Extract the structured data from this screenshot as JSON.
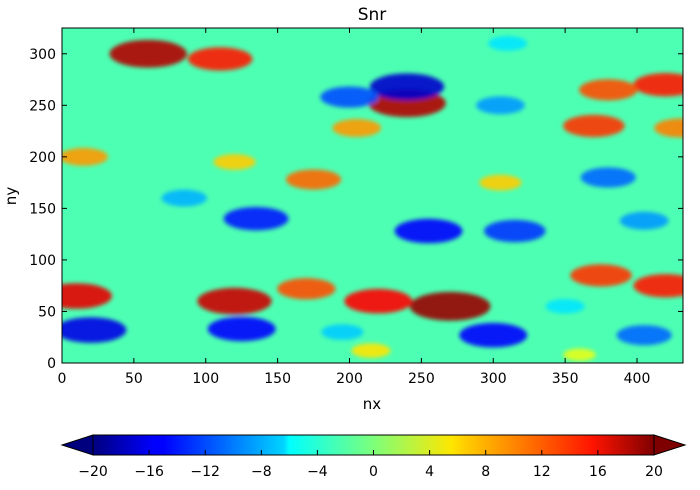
{
  "chart_data": {
    "type": "heatmap",
    "title": "Snr",
    "xlabel": "nx",
    "ylabel": "ny",
    "xlim": [
      0,
      432
    ],
    "ylim": [
      0,
      325
    ],
    "x_ticks": [
      0,
      50,
      100,
      150,
      200,
      250,
      300,
      350,
      400
    ],
    "y_ticks": [
      0,
      50,
      100,
      150,
      200,
      250,
      300
    ],
    "colorbar": {
      "orientation": "horizontal",
      "extend": "both",
      "colormap": "jet",
      "range": [
        -20,
        20
      ],
      "ticks": [
        -20,
        -16,
        -12,
        -8,
        -4,
        0,
        4,
        8,
        12,
        16,
        20
      ],
      "tick_labels": [
        "−20",
        "−16",
        "−12",
        "−8",
        "−4",
        "0",
        "4",
        "8",
        "12",
        "16",
        "20"
      ]
    },
    "features": [
      {
        "x": 270,
        "y": 55,
        "value": 19
      },
      {
        "x": 220,
        "y": 60,
        "value": 15
      },
      {
        "x": 120,
        "y": 60,
        "value": 17
      },
      {
        "x": 170,
        "y": 72,
        "value": 12
      },
      {
        "x": 10,
        "y": 65,
        "value": 16
      },
      {
        "x": 420,
        "y": 75,
        "value": 14
      },
      {
        "x": 375,
        "y": 85,
        "value": 13
      },
      {
        "x": 60,
        "y": 300,
        "value": 18
      },
      {
        "x": 110,
        "y": 295,
        "value": 14
      },
      {
        "x": 240,
        "y": 252,
        "value": 18
      },
      {
        "x": 420,
        "y": 270,
        "value": 14
      },
      {
        "x": 380,
        "y": 265,
        "value": 12
      },
      {
        "x": 430,
        "y": 228,
        "value": 10
      },
      {
        "x": 370,
        "y": 230,
        "value": 13
      },
      {
        "x": 205,
        "y": 228,
        "value": 9
      },
      {
        "x": 15,
        "y": 200,
        "value": 9
      },
      {
        "x": 120,
        "y": 195,
        "value": 7
      },
      {
        "x": 175,
        "y": 178,
        "value": 11
      },
      {
        "x": 305,
        "y": 175,
        "value": 7
      },
      {
        "x": 135,
        "y": 140,
        "value": -14
      },
      {
        "x": 85,
        "y": 160,
        "value": -8
      },
      {
        "x": 255,
        "y": 128,
        "value": -15
      },
      {
        "x": 315,
        "y": 128,
        "value": -13
      },
      {
        "x": 380,
        "y": 180,
        "value": -11
      },
      {
        "x": 405,
        "y": 138,
        "value": -9
      },
      {
        "x": 240,
        "y": 268,
        "value": -17
      },
      {
        "x": 200,
        "y": 258,
        "value": -12
      },
      {
        "x": 305,
        "y": 250,
        "value": -9
      },
      {
        "x": 20,
        "y": 32,
        "value": -16
      },
      {
        "x": 125,
        "y": 33,
        "value": -15
      },
      {
        "x": 300,
        "y": 27,
        "value": -15
      },
      {
        "x": 405,
        "y": 27,
        "value": -11
      },
      {
        "x": 195,
        "y": 30,
        "value": -7
      },
      {
        "x": 350,
        "y": 55,
        "value": -6
      },
      {
        "x": 215,
        "y": 12,
        "value": 6
      },
      {
        "x": 360,
        "y": 8,
        "value": 4
      },
      {
        "x": 310,
        "y": 310,
        "value": -6
      }
    ]
  }
}
